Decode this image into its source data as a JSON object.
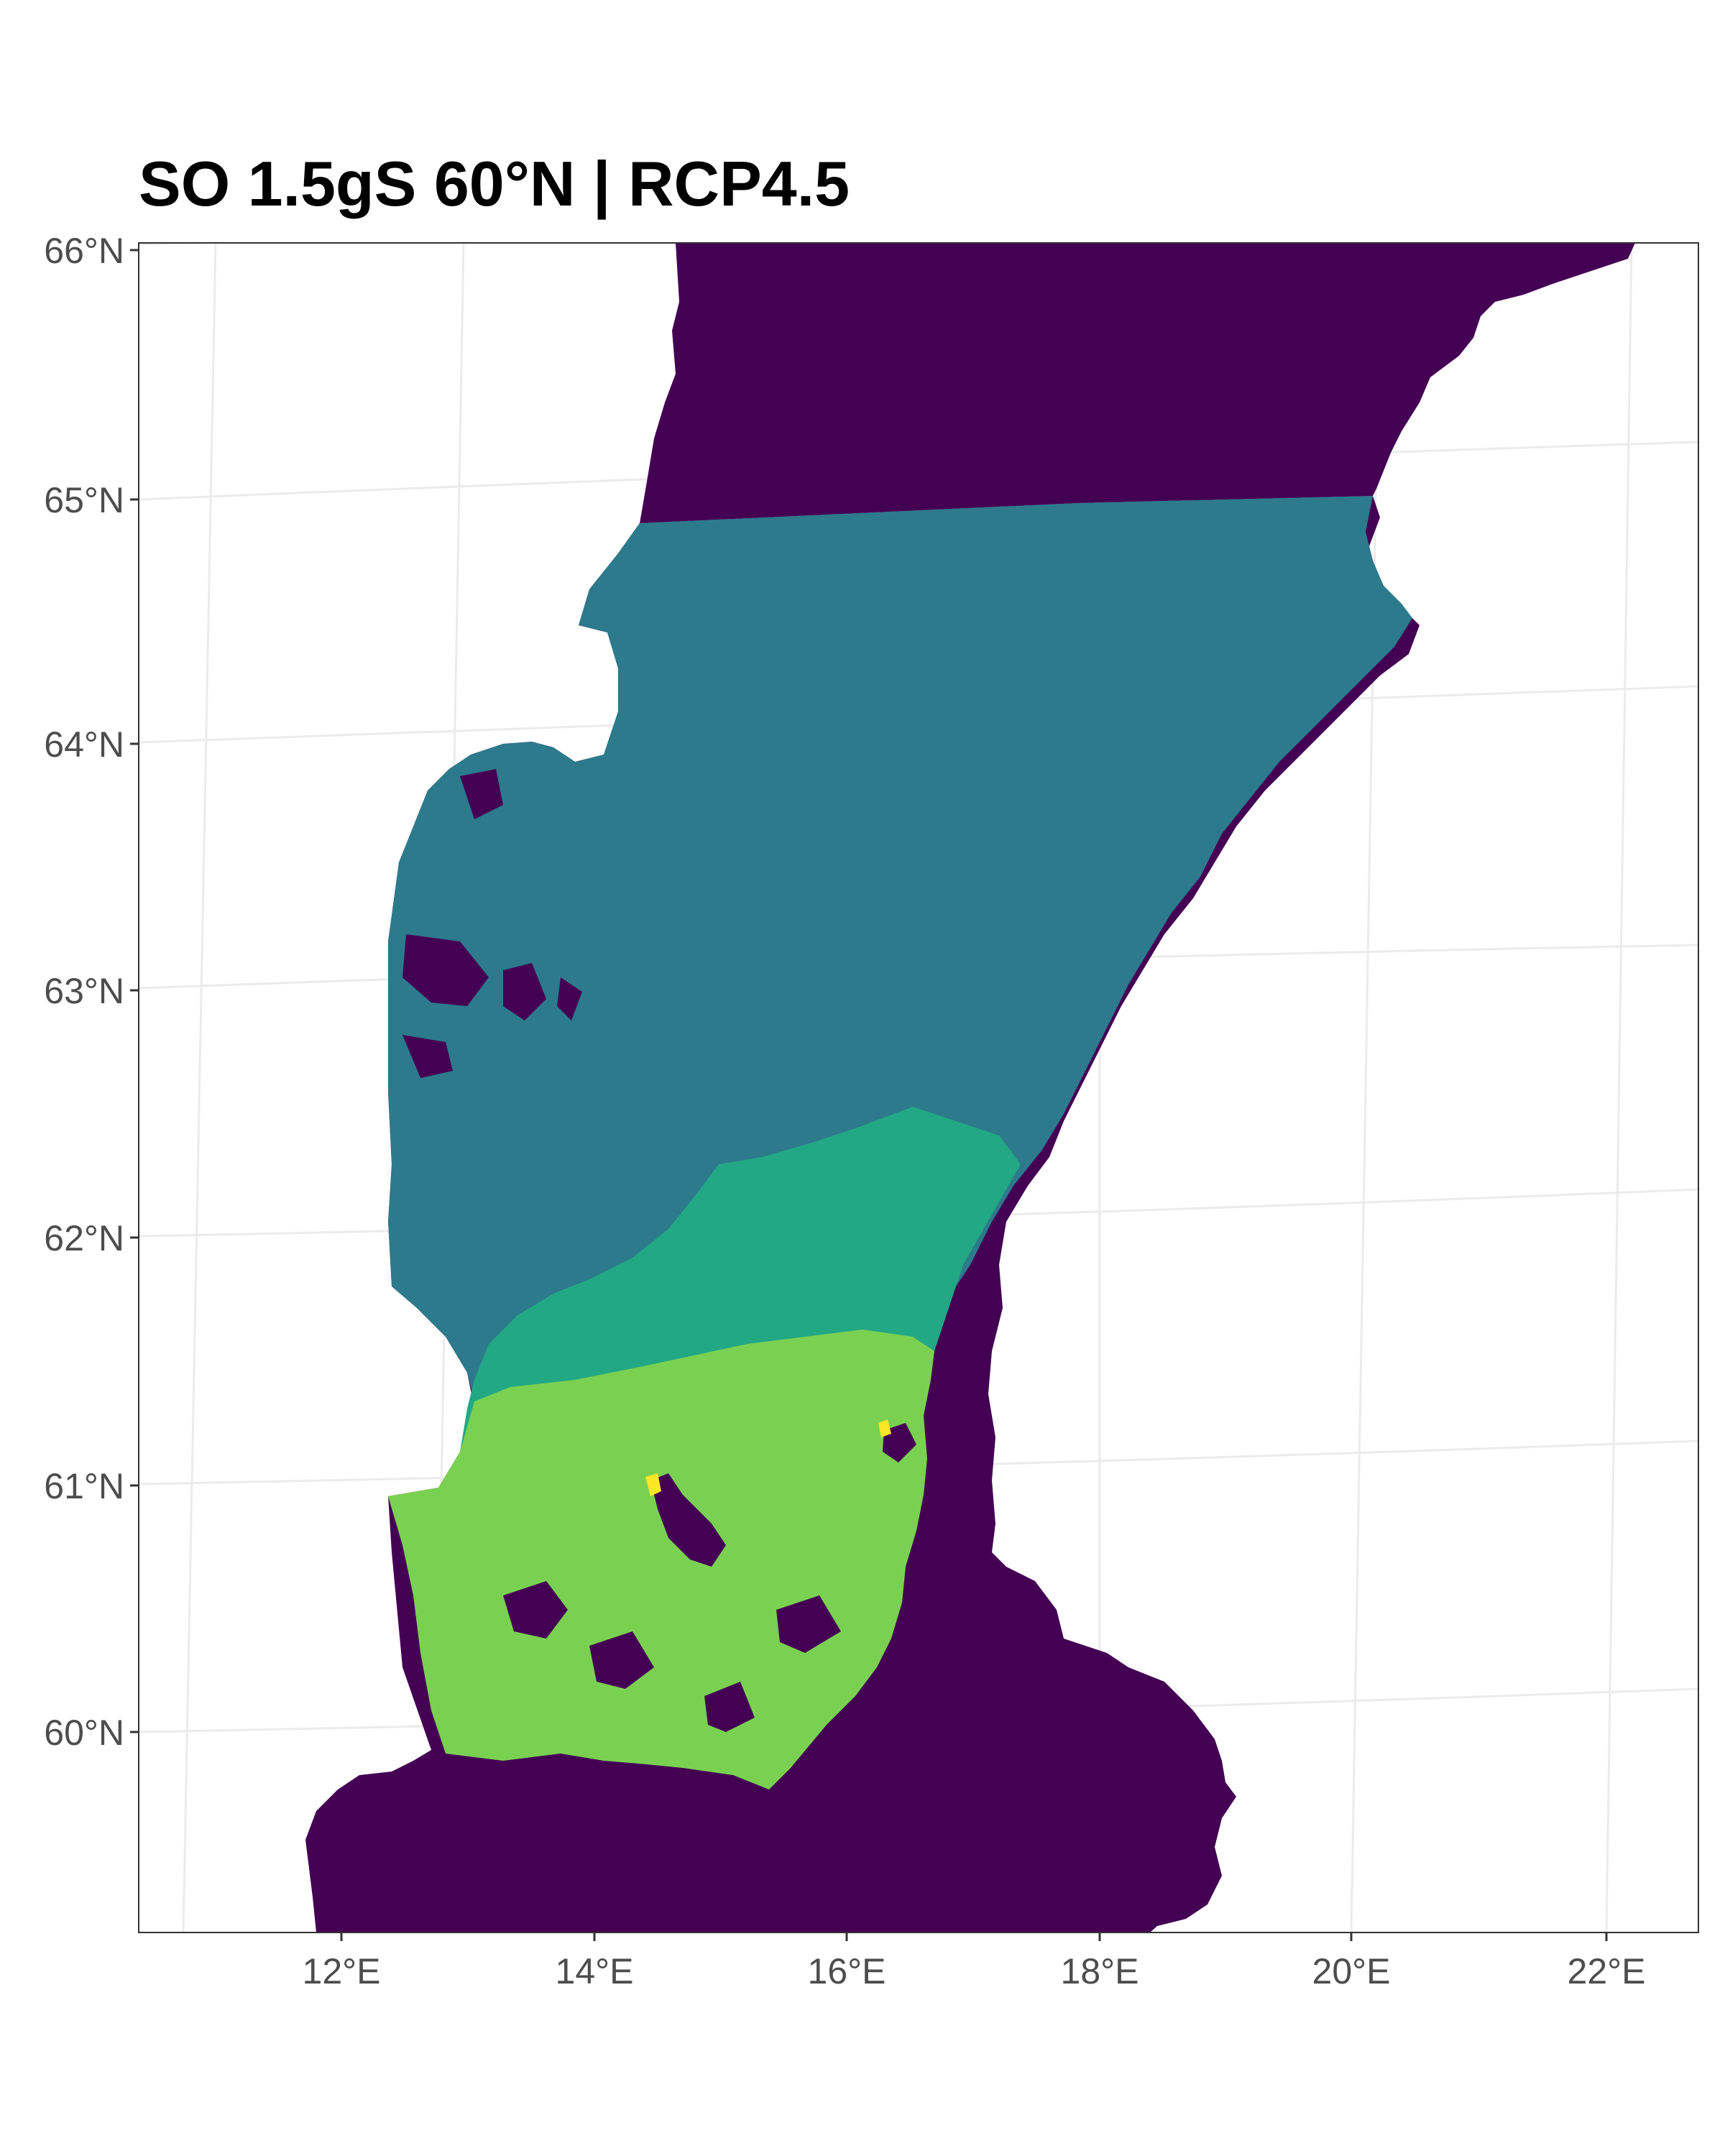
{
  "title": "SO 1.5gS 60°N | RCP4.5",
  "axes": {
    "y_labels": [
      "66°N",
      "65°N",
      "64°N",
      "63°N",
      "62°N",
      "61°N",
      "60°N"
    ],
    "x_labels": [
      "12°E",
      "14°E",
      "16°E",
      "18°E",
      "20°E",
      "22°E"
    ]
  },
  "colors": {
    "class_dark_purple": "#440154",
    "class_teal_blue": "#2c7a8c",
    "class_green": "#22a884",
    "class_light_green": "#7ad151",
    "class_yellow": "#fde725",
    "graticule": "#ebebeb",
    "panel_border": "#333333"
  }
}
